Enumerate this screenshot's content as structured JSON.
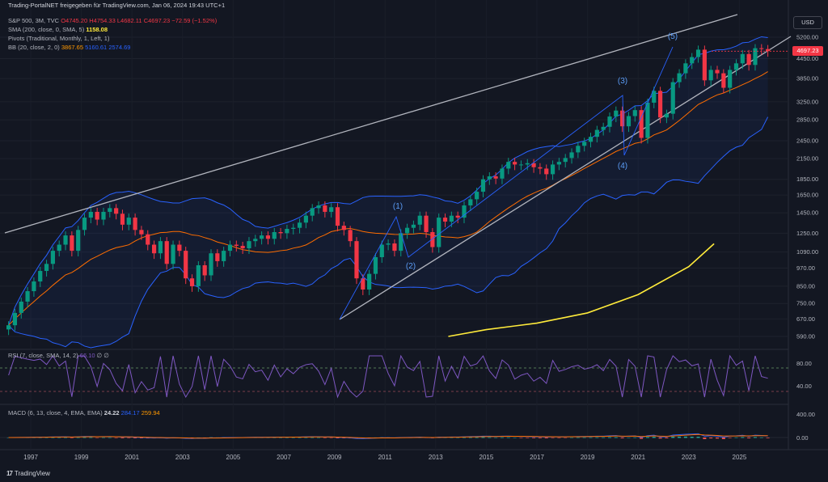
{
  "header": {
    "title": "Trading-PortalNET freigegeben für TradingView.com, Jan 06, 2024 19:43 UTC+1",
    "symbol": "S&P 500, 3M, TVC",
    "open": "O4745.20",
    "high": "H4754.33",
    "low": "L4682.11",
    "close": "C4697.23",
    "change": "−72.59 (−1.52%)",
    "sma_label": "SMA (200, close, 0, SMA, 5)",
    "sma_value": "1158.08",
    "pivots_label": "Pivots (Traditional, Monthly, 1, Left, 1)",
    "bb_label": "BB (20, close, 2, 0)",
    "bb_basis": "3867.65",
    "bb_upper": "5160.61",
    "bb_lower": "2574.69",
    "rsi_label": "RSI (7, close, SMA, 14, 2)",
    "rsi_value": "66.10",
    "rsi_extra": "∅ ∅",
    "macd_label": "MACD (6, 13, close, 4, EMA, EMA)",
    "macd_hist": "24.22",
    "macd_line": "284.17",
    "macd_signal": "259.94"
  },
  "currency": "USD",
  "last_price": "4697.23",
  "brand": "TradingView",
  "colors": {
    "up": "#089981",
    "down": "#f23645",
    "sma": "#ffeb3b",
    "bb_basis": "#ff6d00",
    "bb_band": "#2962ff",
    "trend": "#b2b5be",
    "rsi": "#7e57c2",
    "macd": "#2962ff",
    "signal": "#ff6d00",
    "wave": "#2962ff"
  },
  "chart_data": {
    "type": "candlestick",
    "x_labels": [
      "1997",
      "1999",
      "2001",
      "2003",
      "2005",
      "2007",
      "2009",
      "2011",
      "2013",
      "2015",
      "2017",
      "2019",
      "2021",
      "2023",
      "2025"
    ],
    "y_ticks": [
      "5200.00",
      "4450.00",
      "3850.00",
      "3250.00",
      "2850.00",
      "2450.00",
      "2150.00",
      "1850.00",
      "1650.00",
      "1450.00",
      "1250.00",
      "1090.00",
      "970.00",
      "850.00",
      "750.00",
      "670.00",
      "590.00"
    ],
    "y_scale": "log",
    "period_start": "1996",
    "candles_per_year": 4,
    "closes": [
      640,
      700,
      760,
      820,
      880,
      950,
      1000,
      1100,
      1150,
      1230,
      1100,
      1280,
      1400,
      1460,
      1380,
      1460,
      1500,
      1440,
      1330,
      1400,
      1280,
      1240,
      1150,
      1080,
      1180,
      1000,
      1150,
      1100,
      900,
      850,
      990,
      920,
      1080,
      1020,
      1100,
      1150,
      1140,
      1120,
      1180,
      1200,
      1230,
      1200,
      1260,
      1250,
      1290,
      1300,
      1350,
      1420,
      1500,
      1530,
      1460,
      1510,
      1320,
      1280,
      1180,
      900,
      830,
      930,
      1050,
      1150,
      1160,
      1100,
      1250,
      1300,
      1330,
      1420,
      1260,
      1130,
      1400,
      1360,
      1420,
      1400,
      1530,
      1600,
      1690,
      1850,
      1890,
      1860,
      2000,
      2100,
      2060,
      2060,
      2080,
      2020,
      2000,
      1920,
      2060,
      2100,
      2160,
      2250,
      2360,
      2430,
      2520,
      2650,
      2710,
      2920,
      3050,
      2720,
      2930,
      3060,
      2500,
      3230,
      3520,
      2900,
      2980,
      3750,
      4000,
      4300,
      4500,
      4750,
      3800,
      4100,
      4000,
      3600,
      4100,
      4300,
      4600,
      4250,
      4800,
      4770,
      4700
    ],
    "sma200": [
      [
        2013.5,
        590
      ],
      [
        2015,
        620
      ],
      [
        2017,
        650
      ],
      [
        2019,
        700
      ],
      [
        2021,
        800
      ],
      [
        2023,
        980
      ],
      [
        2024,
        1158
      ]
    ],
    "bb_basis": "3867.65",
    "bb_upper": "5160.61",
    "bb_lower": "2574.69",
    "wave_labels": [
      "(1)",
      "(2)",
      "(3)",
      "(4)",
      "(5)"
    ],
    "rsi_ticks": [
      "80.00",
      "40.00"
    ],
    "macd_ticks": [
      "400.00",
      "0.00"
    ]
  }
}
